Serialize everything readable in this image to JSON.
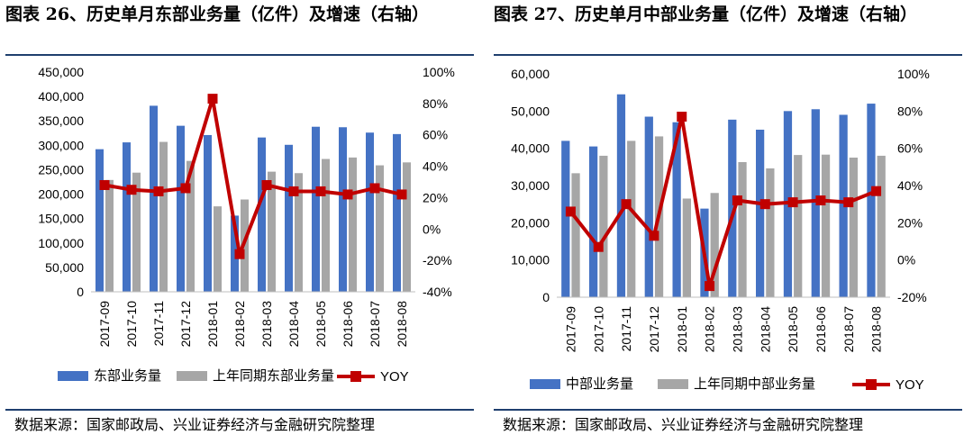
{
  "colors": {
    "current": "#4472C4",
    "prior": "#A6A6A6",
    "yoy": "#C00000",
    "rule": "#1F3F6E"
  },
  "charts": [
    {
      "title": "图表 26、历史单月东部业务量（亿件）及增速（右轴）",
      "source": "数据来源：国家邮政局、兴业证券经济与金融研究院整理"
    },
    {
      "title": "图表 27、历史单月中部业务量（亿件）及增速（右轴）",
      "source": "数据来源：国家邮政局、兴业证券经济与金融研究院整理"
    }
  ],
  "chart_data": [
    {
      "type": "bar",
      "categories": [
        "2017-09",
        "2017-10",
        "2017-11",
        "2017-12",
        "2018-01",
        "2018-02",
        "2018-03",
        "2018-04",
        "2018-05",
        "2018-06",
        "2018-07",
        "2018-08"
      ],
      "series": [
        {
          "name": "东部业务量",
          "type": "bar",
          "axis": "left",
          "values": [
            292000,
            306000,
            381000,
            340000,
            321000,
            156000,
            316000,
            301000,
            338000,
            337000,
            326000,
            323000
          ]
        },
        {
          "name": "上年同期东部业务量",
          "type": "bar",
          "axis": "left",
          "values": [
            229000,
            244000,
            307000,
            268000,
            175000,
            189000,
            246000,
            243000,
            272000,
            275000,
            259000,
            265000
          ]
        },
        {
          "name": "YOY",
          "type": "line",
          "axis": "right",
          "values": [
            0.28,
            0.25,
            0.24,
            0.26,
            0.83,
            -0.16,
            0.28,
            0.24,
            0.24,
            0.22,
            0.26,
            0.22
          ]
        }
      ],
      "y_left": {
        "ylim": [
          0,
          450000
        ],
        "ticks": [
          "0",
          "50,000",
          "100,000",
          "150,000",
          "200,000",
          "250,000",
          "300,000",
          "350,000",
          "400,000",
          "450,000"
        ]
      },
      "y_right": {
        "ylim": [
          -0.4,
          1.0
        ],
        "ticks": [
          "-40%",
          "-20%",
          "0%",
          "20%",
          "40%",
          "60%",
          "80%",
          "100%"
        ]
      },
      "grid": false,
      "legend": "bottom"
    },
    {
      "type": "bar",
      "categories": [
        "2017-09",
        "2017-10",
        "2017-11",
        "2017-12",
        "2018-01",
        "2018-02",
        "2018-03",
        "2018-04",
        "2018-05",
        "2018-06",
        "2018-07",
        "2018-08"
      ],
      "series": [
        {
          "name": "中部业务量",
          "type": "bar",
          "axis": "left",
          "values": [
            42000,
            40500,
            54500,
            48500,
            47000,
            23800,
            47700,
            45000,
            50000,
            50500,
            49000,
            52000
          ]
        },
        {
          "name": "上年同期中部业务量",
          "type": "bar",
          "axis": "left",
          "values": [
            33300,
            38000,
            42000,
            43200,
            26500,
            28000,
            36300,
            34600,
            38200,
            38300,
            37500,
            38000
          ]
        },
        {
          "name": "YOY",
          "type": "line",
          "axis": "right",
          "values": [
            0.26,
            0.07,
            0.3,
            0.13,
            0.77,
            -0.14,
            0.32,
            0.3,
            0.31,
            0.32,
            0.31,
            0.37
          ]
        }
      ],
      "y_left": {
        "ylim": [
          0,
          60000
        ],
        "ticks": [
          "0",
          "10,000",
          "20,000",
          "30,000",
          "40,000",
          "50,000",
          "60,000"
        ]
      },
      "y_right": {
        "ylim": [
          -0.2,
          1.0
        ],
        "ticks": [
          "-20%",
          "0%",
          "20%",
          "40%",
          "60%",
          "80%",
          "100%"
        ]
      },
      "grid": false,
      "legend": "bottom"
    }
  ]
}
